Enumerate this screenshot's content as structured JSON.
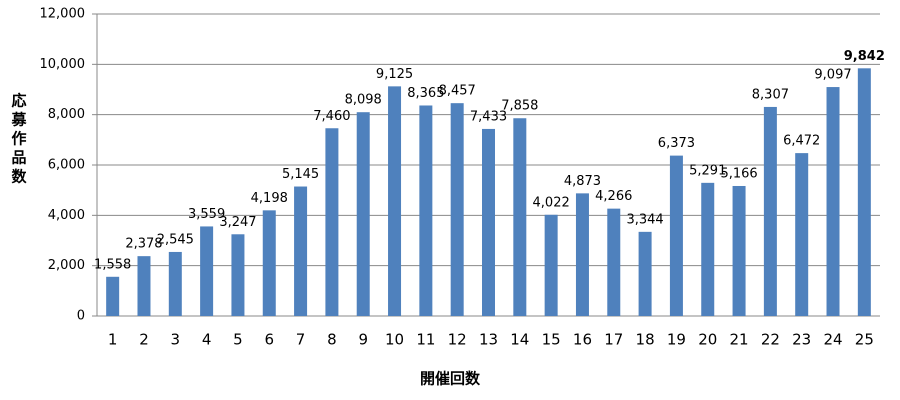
{
  "chart_data": {
    "type": "bar",
    "x_label": "開催回数",
    "y_label": "応募作品数",
    "categories": [
      "1",
      "2",
      "3",
      "4",
      "5",
      "6",
      "7",
      "8",
      "9",
      "10",
      "11",
      "12",
      "13",
      "14",
      "15",
      "16",
      "17",
      "18",
      "19",
      "20",
      "21",
      "22",
      "23",
      "24",
      "25"
    ],
    "values": [
      1558,
      2378,
      2545,
      3559,
      3247,
      4198,
      5145,
      7460,
      8098,
      9125,
      8365,
      8457,
      7433,
      7858,
      4022,
      4873,
      4266,
      3344,
      6373,
      5291,
      5166,
      8307,
      6472,
      9097,
      9842
    ],
    "value_labels": [
      "1,558",
      "2,378",
      "2,545",
      "3,559",
      "3,247",
      "4,198",
      "5,145",
      "7,460",
      "8,098",
      "9,125",
      "8,365",
      "8,457",
      "7,433",
      "7,858",
      "4,022",
      "4,873",
      "4,266",
      "3,344",
      "6,373",
      "5,291",
      "5,166",
      "8,307",
      "6,472",
      "9,097",
      "9,842"
    ],
    "color": "#4f81bd",
    "ylim": [
      0,
      12000
    ],
    "yticks": [
      0,
      {
        "value": 2000,
        "label": "2,000"
      },
      {
        "value": 4000,
        "label": "4,000"
      },
      {
        "value": 6000,
        "label": "6,000"
      },
      {
        "value": 8000,
        "label": "8,000"
      },
      {
        "value": 10000,
        "label": "10,000"
      },
      {
        "value": 12000,
        "label": "12,000"
      }
    ],
    "grid": true
  }
}
